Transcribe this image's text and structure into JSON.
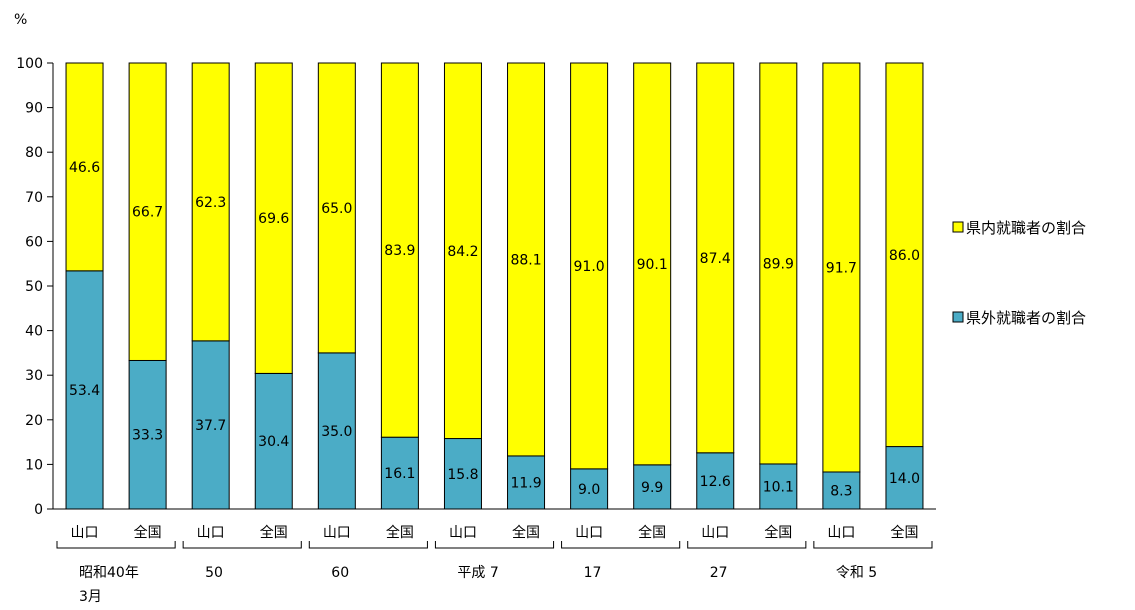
{
  "chart_data": {
    "type": "bar",
    "stacked": true,
    "percent_stacked": true,
    "unit_label": "%",
    "ylim": [
      0,
      100
    ],
    "y_ticks": [
      0,
      10,
      20,
      30,
      40,
      50,
      60,
      70,
      80,
      90,
      100
    ],
    "grid": false,
    "legend_position": "right",
    "colors": {
      "県内就職者の割合": "#FFFF00",
      "県外就職者の割合": "#4BACC6"
    },
    "groups": [
      {
        "label_lines": [
          "昭和40年",
          "3月"
        ],
        "categories": [
          "山口",
          "全国"
        ]
      },
      {
        "label_lines": [
          "50"
        ],
        "categories": [
          "山口",
          "全国"
        ]
      },
      {
        "label_lines": [
          "60"
        ],
        "categories": [
          "山口",
          "全国"
        ]
      },
      {
        "label_lines": [
          "平成 7"
        ],
        "categories": [
          "山口",
          "全国"
        ]
      },
      {
        "label_lines": [
          "17"
        ],
        "categories": [
          "山口",
          "全国"
        ]
      },
      {
        "label_lines": [
          "27"
        ],
        "categories": [
          "山口",
          "全国"
        ]
      },
      {
        "label_lines": [
          "令和 5"
        ],
        "categories": [
          "山口",
          "全国"
        ]
      }
    ],
    "series": [
      {
        "name": "県外就職者の割合",
        "values": [
          53.4,
          33.3,
          37.7,
          30.4,
          35.0,
          16.1,
          15.8,
          11.9,
          9.0,
          9.9,
          12.6,
          10.1,
          8.3,
          14.0
        ]
      },
      {
        "name": "県内就職者の割合",
        "values": [
          46.6,
          66.7,
          62.3,
          69.6,
          65.0,
          83.9,
          84.2,
          88.1,
          91.0,
          90.1,
          87.4,
          89.9,
          91.7,
          86.0
        ]
      }
    ],
    "legend_order": [
      "県内就職者の割合",
      "県外就職者の割合"
    ]
  }
}
